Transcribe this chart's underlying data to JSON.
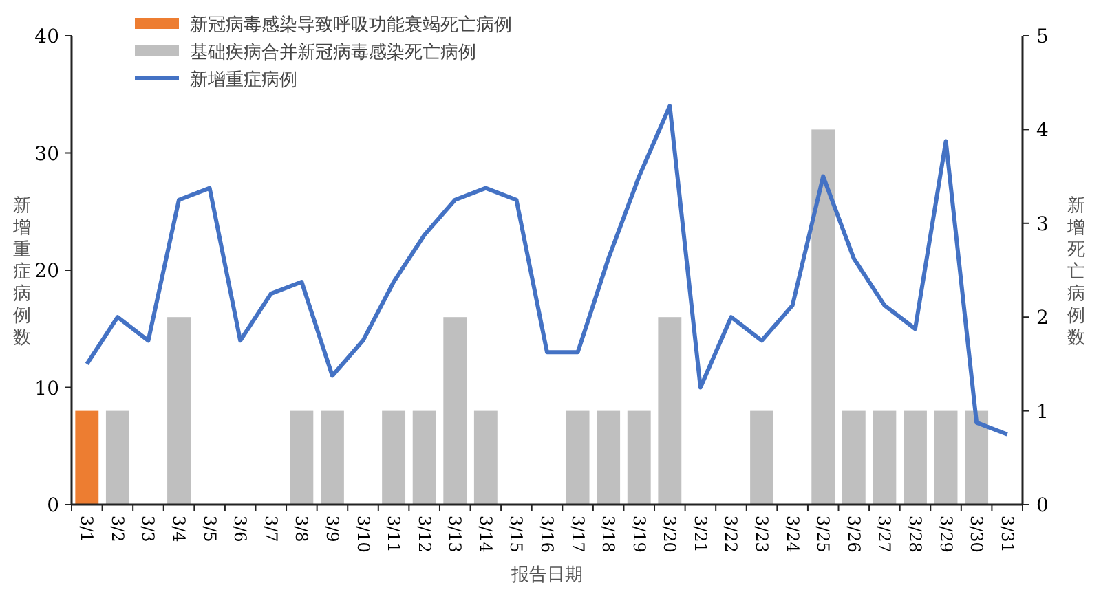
{
  "chart_data": {
    "type": "bar",
    "xlabel": "报告日期",
    "ylabel": "新增重症病例数",
    "y2label": "新增死亡病例数",
    "categories": [
      "3/1",
      "3/2",
      "3/3",
      "3/4",
      "3/5",
      "3/6",
      "3/7",
      "3/8",
      "3/9",
      "3/10",
      "3/11",
      "3/12",
      "3/13",
      "3/14",
      "3/15",
      "3/16",
      "3/17",
      "3/18",
      "3/19",
      "3/20",
      "3/21",
      "3/22",
      "3/23",
      "3/24",
      "3/25",
      "3/26",
      "3/27",
      "3/28",
      "3/29",
      "3/30",
      "3/31"
    ],
    "ylim": [
      0,
      40
    ],
    "yticks": [
      0,
      10,
      20,
      30,
      40
    ],
    "y2lim": [
      0,
      5
    ],
    "y2ticks": [
      0,
      1,
      2,
      3,
      4,
      5
    ],
    "grid": false,
    "legend": "top left",
    "series": [
      {
        "name": "新冠病毒感染导致呼吸功能衰竭死亡病例",
        "axis": "y2",
        "color": "#ed7d31",
        "values": [
          1,
          null,
          null,
          null,
          null,
          null,
          null,
          null,
          null,
          null,
          null,
          null,
          null,
          null,
          null,
          null,
          null,
          null,
          null,
          null,
          null,
          null,
          null,
          null,
          null,
          null,
          null,
          null,
          null,
          null,
          null
        ]
      },
      {
        "name": "基础疾病合并新冠病毒感染死亡病例",
        "axis": "y2",
        "color": "#bfbfbf",
        "values": [
          null,
          1,
          null,
          2,
          null,
          null,
          null,
          1,
          1,
          null,
          1,
          1,
          2,
          1,
          null,
          null,
          1,
          1,
          1,
          2,
          null,
          null,
          1,
          null,
          4,
          1,
          1,
          1,
          1,
          1,
          null
        ]
      },
      {
        "name": "新增重症病例",
        "type": "line",
        "axis": "y",
        "color": "#4472c4",
        "line_style": "solid",
        "marker": "none",
        "values": [
          12,
          16,
          14,
          26,
          27,
          14,
          18,
          19,
          11,
          14,
          19,
          23,
          26,
          27,
          26,
          13,
          13,
          21,
          28,
          34,
          10,
          16,
          14,
          17,
          28,
          21,
          17,
          15,
          31,
          7,
          6
        ]
      }
    ]
  }
}
